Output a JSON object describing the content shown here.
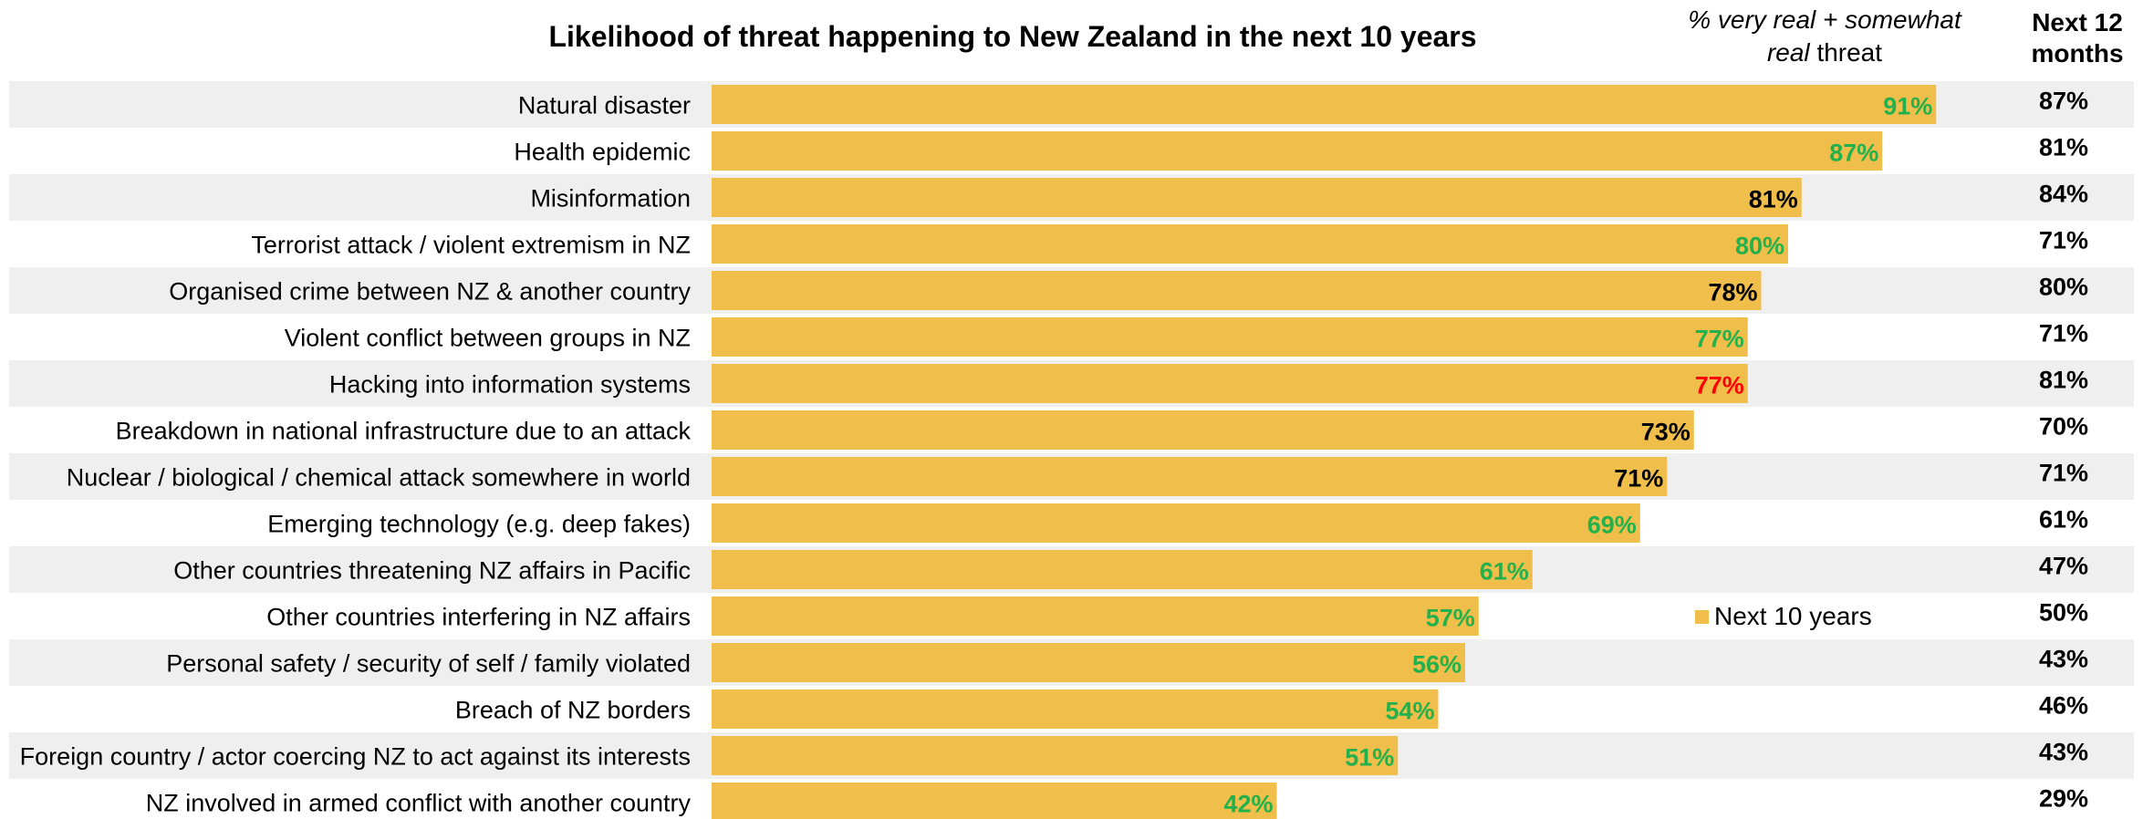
{
  "title": "Likelihood of threat happening to New Zealand in the next 10 years",
  "column_header": {
    "part1": "% very real + somewhat",
    "part2_italic": "real",
    "part3": "threat"
  },
  "next12_header": "Next 12 months",
  "legend": {
    "label": "Next 10 years"
  },
  "colors": {
    "bar": "#f0be4a",
    "band": "#efefef",
    "green": "#22b14c",
    "red": "#ff0000",
    "black": "#000000"
  },
  "chart_data": {
    "type": "bar",
    "orientation": "horizontal",
    "title": "Likelihood of threat happening to New Zealand in the next 10 years",
    "categories": [
      "Natural disaster",
      "Health epidemic",
      "Misinformation",
      "Terrorist attack / violent extremism in NZ",
      "Organised crime between NZ & another country",
      "Violent conflict between groups in NZ",
      "Hacking into information systems",
      "Breakdown in national infrastructure due to an attack",
      "Nuclear / biological / chemical attack somewhere in world",
      "Emerging technology (e.g. deep fakes)",
      "Other countries threatening NZ affairs in Pacific",
      "Other countries interfering in NZ affairs",
      "Personal safety / security of self / family violated",
      "Breach of NZ borders",
      "Foreign country / actor coercing NZ to act against its interests",
      "NZ involved in armed conflict with another country"
    ],
    "series": [
      {
        "name": "Next 10 years",
        "values": [
          91,
          87,
          81,
          80,
          78,
          77,
          77,
          73,
          71,
          69,
          61,
          57,
          56,
          54,
          51,
          42
        ],
        "label_colors": [
          "green",
          "green",
          "black",
          "green",
          "black",
          "green",
          "red",
          "black",
          "black",
          "green",
          "green",
          "green",
          "green",
          "green",
          "green",
          "green"
        ]
      }
    ],
    "next_12_months": [
      87,
      81,
      84,
      71,
      80,
      71,
      81,
      70,
      71,
      61,
      47,
      50,
      43,
      46,
      43,
      29
    ],
    "xlim": [
      0,
      100
    ],
    "legend_position": "right"
  }
}
